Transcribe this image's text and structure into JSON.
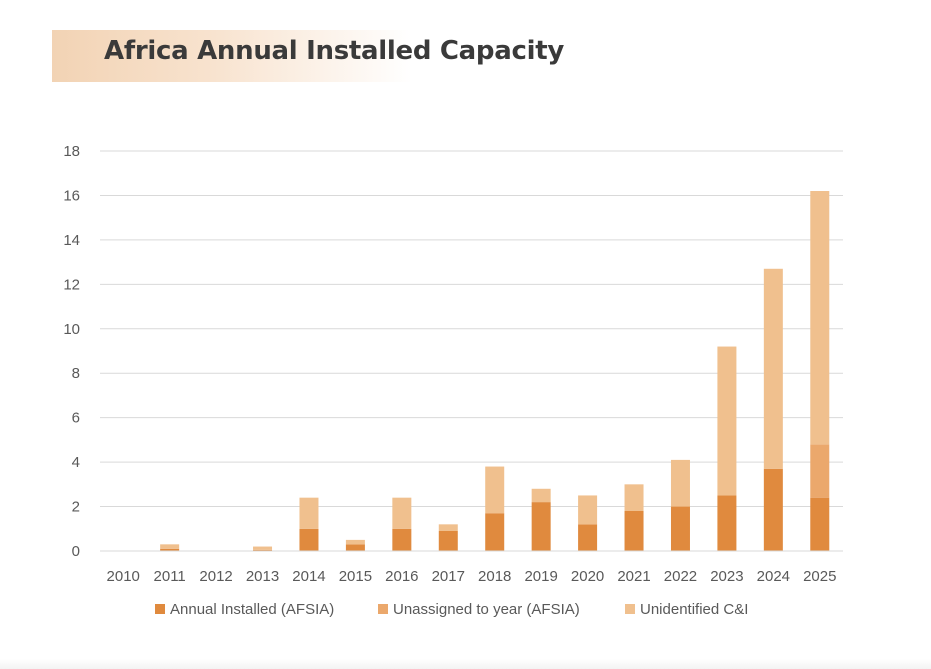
{
  "page": {
    "title": "Africa Annual Installed Capacity"
  },
  "chart_data": {
    "type": "bar",
    "stacked": true,
    "title": "Africa Annual Installed Capacity",
    "xlabel": "",
    "ylabel": "",
    "categories": [
      "2010",
      "2011",
      "2012",
      "2013",
      "2014",
      "2015",
      "2016",
      "2017",
      "2018",
      "2019",
      "2020",
      "2021",
      "2022",
      "2023",
      "2024",
      "2025"
    ],
    "ylim": [
      0,
      18
    ],
    "yticks": [
      0,
      2,
      4,
      6,
      8,
      10,
      12,
      14,
      16,
      18
    ],
    "grid": true,
    "legend_position": "bottom",
    "series": [
      {
        "name": "Annual Installed (AFSIA)",
        "color": "#e08a3e",
        "values": [
          0,
          0.1,
          0,
          0.05,
          1.0,
          0.3,
          1.0,
          0.9,
          1.7,
          2.2,
          1.2,
          1.8,
          2.0,
          2.5,
          3.7,
          2.4
        ]
      },
      {
        "name": "Unassigned to year (AFSIA)",
        "color": "#eba86c",
        "values": [
          0,
          0,
          0,
          0,
          0,
          0,
          0,
          0,
          0,
          0,
          0,
          0,
          0,
          0,
          0,
          2.4
        ]
      },
      {
        "name": "Unidentified C&I",
        "color": "#f0c08e",
        "values": [
          0,
          0.2,
          0,
          0.15,
          1.4,
          0.2,
          1.4,
          0.3,
          2.1,
          0.6,
          1.3,
          1.2,
          2.1,
          6.7,
          9.0,
          11.4
        ]
      }
    ]
  }
}
